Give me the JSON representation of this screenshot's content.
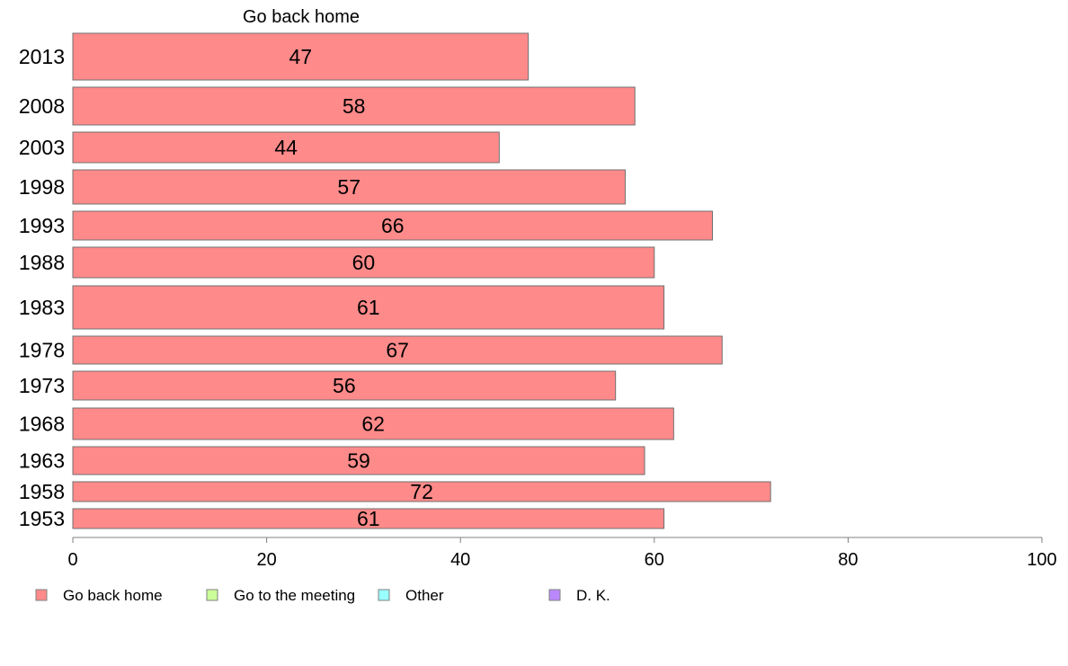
{
  "chart_data": {
    "type": "bar",
    "orientation": "horizontal",
    "title": "Go back home",
    "categories": [
      "2013",
      "2008",
      "2003",
      "1998",
      "1993",
      "1988",
      "1983",
      "1978",
      "1973",
      "1968",
      "1963",
      "1958",
      "1953"
    ],
    "series": [
      {
        "name": "Go back home",
        "values": [
          47,
          58,
          44,
          57,
          66,
          60,
          61,
          67,
          56,
          62,
          59,
          72,
          61
        ],
        "data_labels": [
          "47",
          "58",
          "44",
          "57",
          "66",
          "60",
          "61",
          "67",
          "56",
          "62",
          "59",
          "72",
          "61"
        ],
        "color": "#ff8a8a"
      }
    ],
    "legend": [
      {
        "label": "Go back home",
        "color": "#ff8a8a"
      },
      {
        "label": "Go to the meeting",
        "color": "#ccff99"
      },
      {
        "label": "Other",
        "color": "#99ffff"
      },
      {
        "label": "D. K.",
        "color": "#bb88ff"
      }
    ],
    "legend_position": "bottom",
    "xlim": [
      0,
      100
    ],
    "xticks": [
      0,
      20,
      40,
      60,
      80,
      100
    ],
    "xtick_labels": [
      "0",
      "20",
      "40",
      "60",
      "80",
      "100"
    ],
    "grid": false
  }
}
